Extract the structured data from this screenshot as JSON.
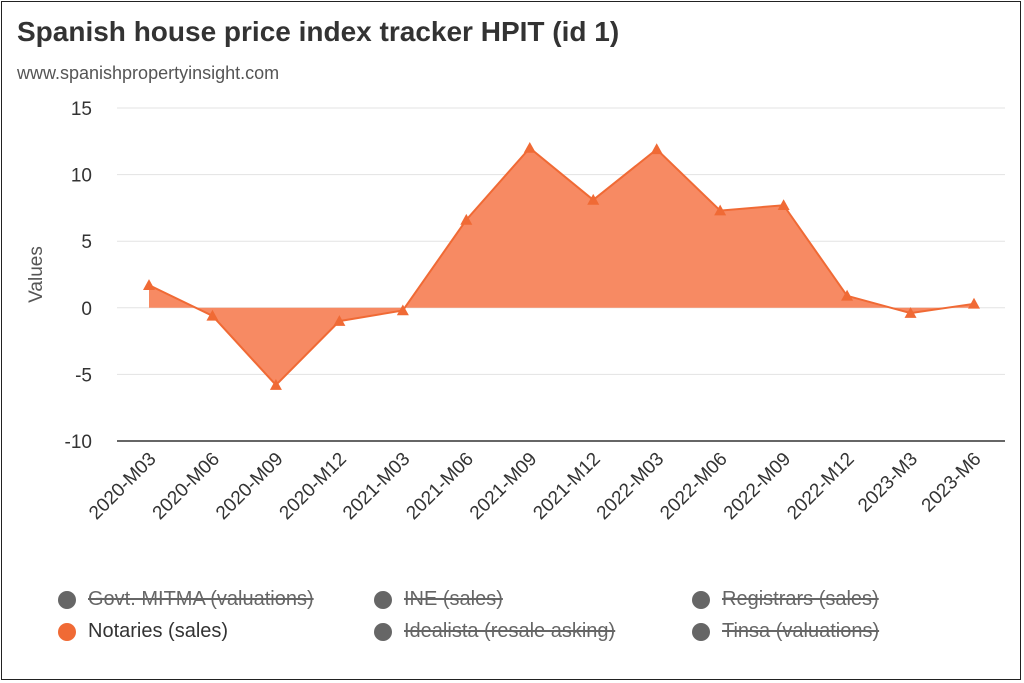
{
  "header": {
    "title": "Spanish house price index tracker HPIT (id 1)",
    "subtitle": "www.spanishpropertyinsight.com"
  },
  "chart_data": {
    "type": "area",
    "categories": [
      "2020-M03",
      "2020-M06",
      "2020-M09",
      "2020-M12",
      "2021-M03",
      "2021-M06",
      "2021-M09",
      "2021-M12",
      "2022-M03",
      "2022-M06",
      "2022-M09",
      "2022-M12",
      "2023-M3",
      "2023-M6"
    ],
    "series": [
      {
        "name": "Notaries (sales)",
        "values": [
          1.7,
          -0.6,
          -5.8,
          -1.0,
          -0.2,
          6.6,
          12.0,
          8.1,
          11.9,
          7.3,
          7.7,
          0.9,
          -0.4,
          0.3
        ]
      }
    ],
    "ylabel": "Values",
    "ylim": [
      -10,
      15
    ],
    "yticks": [
      15,
      10,
      5,
      0,
      -5,
      -10
    ],
    "grid": true,
    "legend_position": "bottom",
    "colors": {
      "active": "#f06a35",
      "fill": "#f78a63",
      "inactive": "#666666"
    }
  },
  "legend": [
    {
      "label": "Govt. MITMA (valuations)",
      "active": false
    },
    {
      "label": "INE (sales)",
      "active": false
    },
    {
      "label": "Registrars (sales)",
      "active": false
    },
    {
      "label": "Notaries (sales)",
      "active": true
    },
    {
      "label": "Idealista (resale asking)",
      "active": false
    },
    {
      "label": "Tinsa (valuations)",
      "active": false
    }
  ]
}
